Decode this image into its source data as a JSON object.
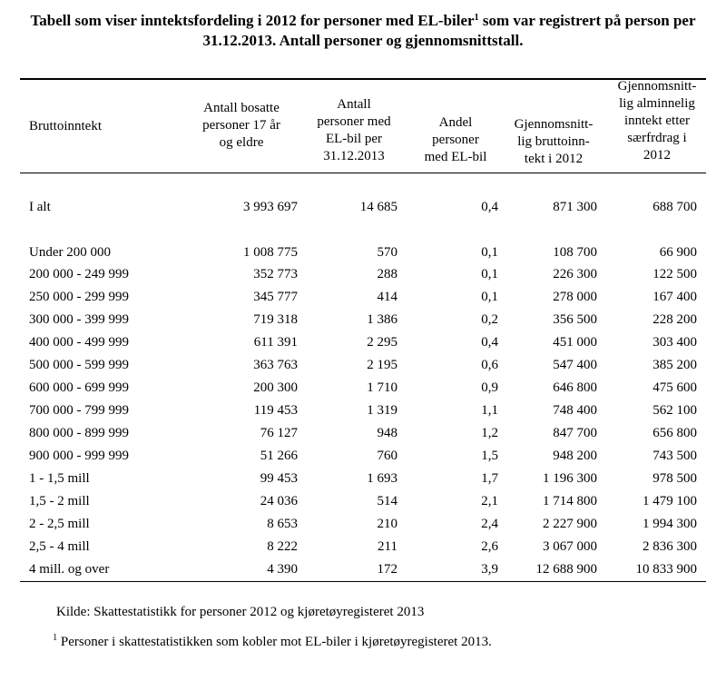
{
  "title": {
    "part1": "Tabell som viser inntektsfordeling i 2012 for personer med EL-biler",
    "sup": "1",
    "part2": " som var registrert på person per 31.12.2013. Antall personer og gjennomsnittstall."
  },
  "headers": {
    "c0": "Bruttoinntekt",
    "c1": [
      "Antall bosatte",
      "personer 17 år",
      "og eldre"
    ],
    "c2": [
      "Antall",
      "personer med",
      "EL-bil per",
      "31.12.2013"
    ],
    "c3": [
      "Andel",
      "personer",
      "med EL-bil"
    ],
    "c4": [
      "Gjennomsnitt-",
      "lig bruttoinn-",
      "tekt i 2012"
    ],
    "c5": [
      "Gjennomsnitt-",
      "lig alminnelig",
      "inntekt etter",
      "særfrdrag i",
      "2012"
    ]
  },
  "rows": [
    {
      "label": "I alt",
      "v": [
        "3 993 697",
        "14 685",
        "0,4",
        "871 300",
        "688 700"
      ]
    },
    {
      "label": "Under 200 000",
      "v": [
        "1 008 775",
        "570",
        "0,1",
        "108 700",
        "66 900"
      ]
    },
    {
      "label": "200 000 - 249 999",
      "v": [
        "352 773",
        "288",
        "0,1",
        "226 300",
        "122 500"
      ]
    },
    {
      "label": "250 000 - 299 999",
      "v": [
        "345 777",
        "414",
        "0,1",
        "278 000",
        "167 400"
      ]
    },
    {
      "label": "300 000 - 399 999",
      "v": [
        "719 318",
        "1 386",
        "0,2",
        "356 500",
        "228 200"
      ]
    },
    {
      "label": "400 000 - 499 999",
      "v": [
        "611 391",
        "2 295",
        "0,4",
        "451 000",
        "303 400"
      ]
    },
    {
      "label": "500 000 - 599 999",
      "v": [
        "363 763",
        "2 195",
        "0,6",
        "547 400",
        "385 200"
      ]
    },
    {
      "label": "600 000 - 699 999",
      "v": [
        "200 300",
        "1 710",
        "0,9",
        "646 800",
        "475 600"
      ]
    },
    {
      "label": "700 000 - 799 999",
      "v": [
        "119 453",
        "1 319",
        "1,1",
        "748 400",
        "562 100"
      ]
    },
    {
      "label": "800 000 - 899 999",
      "v": [
        "76 127",
        "948",
        "1,2",
        "847 700",
        "656 800"
      ]
    },
    {
      "label": "900 000 - 999 999",
      "v": [
        "51 266",
        "760",
        "1,5",
        "948 200",
        "743 500"
      ]
    },
    {
      "label": "1 - 1,5 mill",
      "v": [
        "99 453",
        "1 693",
        "1,7",
        "1 196 300",
        "978 500"
      ]
    },
    {
      "label": "1,5 - 2 mill",
      "v": [
        "24 036",
        "514",
        "2,1",
        "1 714 800",
        "1 479 100"
      ]
    },
    {
      "label": "2 - 2,5 mill",
      "v": [
        "8 653",
        "210",
        "2,4",
        "2 227 900",
        "1 994 300"
      ]
    },
    {
      "label": "2,5 - 4 mill",
      "v": [
        "8 222",
        "211",
        "2,6",
        "3 067 000",
        "2 836 300"
      ]
    },
    {
      "label": "4 mill. og over",
      "v": [
        "4 390",
        "172",
        "3,9",
        "12 688 900",
        "10 833 900"
      ]
    }
  ],
  "source": "Kilde: Skattestatistikk for personer 2012 og kjøretøyregisteret 2013",
  "footnote": {
    "sup": "1",
    "text": " Personer i skattestatistikken som kobler mot EL-biler i kjøretøyregisteret 2013."
  }
}
